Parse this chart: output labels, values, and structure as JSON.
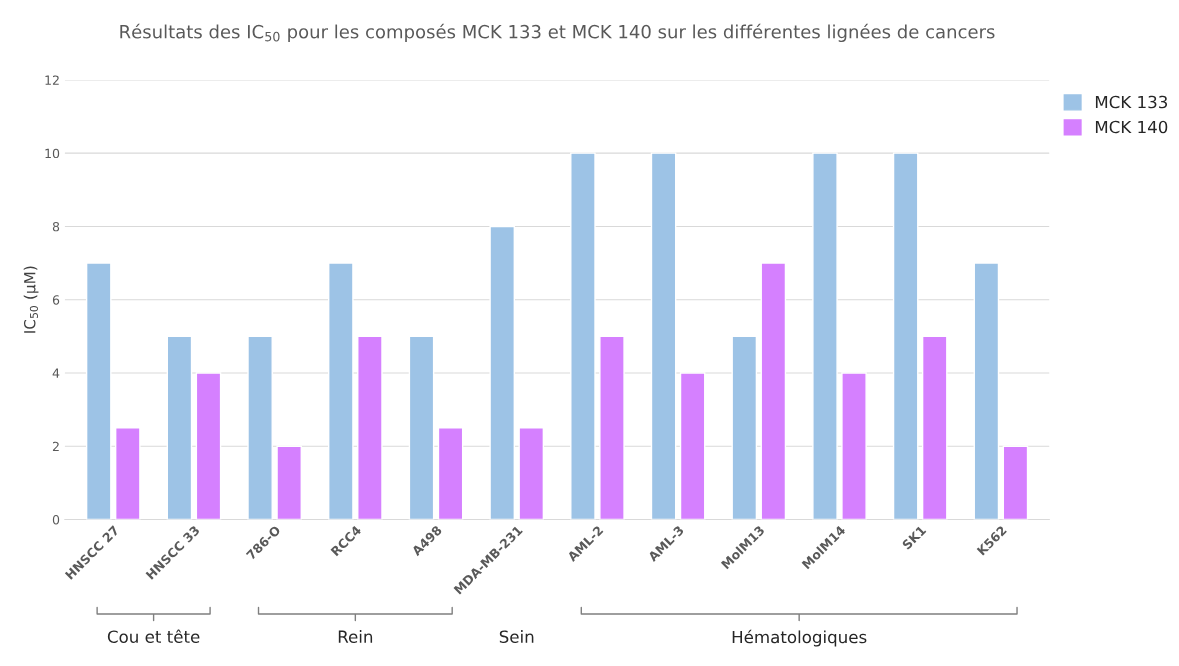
{
  "chart_data": {
    "type": "bar",
    "title": "Résultats des IC$_{50}$ pour les composés MCK 133 et MCK 140 sur les différentes lignées de cancers",
    "ylabel": "IC$_{50}$ (µM)",
    "categories": [
      "HNSCC 27",
      "HNSCC 33",
      "786-O",
      "RCC4",
      "A498",
      "MDA-MB-231",
      "AML-2",
      "AML-3",
      "MolM13",
      "MolM14",
      "SK1",
      "K562"
    ],
    "series": [
      {
        "name": "MCK 133",
        "color": "#9dc3e6",
        "values": [
          7,
          5,
          5,
          7,
          5,
          8,
          10,
          10,
          5,
          10,
          10,
          7
        ]
      },
      {
        "name": "MCK 140",
        "color": "#d580ff",
        "values": [
          2.5,
          4,
          2,
          5,
          2.5,
          2.5,
          5,
          4,
          7,
          4,
          5,
          2
        ]
      }
    ],
    "ylim": [
      0,
      12
    ],
    "yticks": [
      0,
      2,
      4,
      6,
      8,
      10,
      12
    ],
    "grid": "y",
    "legend": "top right",
    "annotations": [
      "Cou et tête",
      "Rein",
      "Sein",
      "Hématologiques"
    ]
  }
}
